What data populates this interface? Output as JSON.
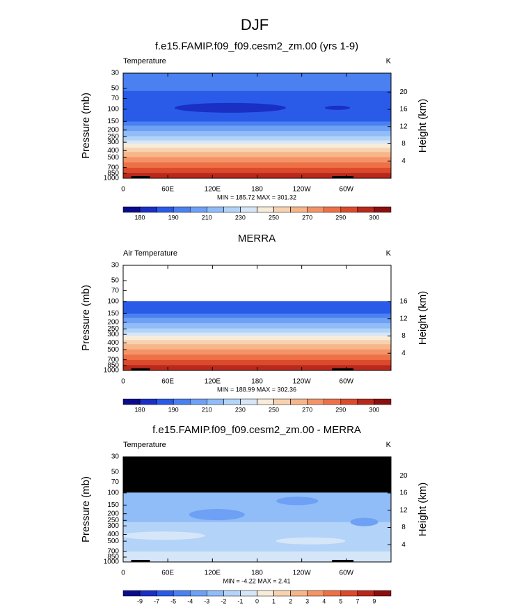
{
  "title": "DJF",
  "chart_data": [
    {
      "type": "contour",
      "title": "f.e15.FAMIP.f09_f09.cesm2_zm.00 (yrs 1-9)",
      "left_label": "Temperature",
      "units_label": "K",
      "ylabel": "Pressure (mb)",
      "y2label": "Height (km)",
      "xlim": [
        0,
        360
      ],
      "xticks": [
        0,
        {
          "value": 60,
          "label": "60E"
        },
        {
          "value": 120,
          "label": "120E"
        },
        180,
        {
          "value": 240,
          "label": "120W"
        },
        {
          "value": 300,
          "label": "60W"
        }
      ],
      "ylim": [
        1000,
        30
      ],
      "ylog": true,
      "yticks": [
        30,
        50,
        70,
        100,
        150,
        200,
        250,
        300,
        400,
        500,
        700,
        850,
        1000
      ],
      "y2lim": [
        0,
        24.4
      ],
      "y2ticks": [
        4,
        8,
        12,
        16,
        20
      ],
      "stats": "MIN = 185.72  MAX = 301.32",
      "colorbar": {
        "levels": [
          180,
          185,
          190,
          200,
          210,
          220,
          230,
          240,
          250,
          260,
          270,
          280,
          290,
          295,
          300
        ],
        "ticks": [
          180,
          190,
          210,
          230,
          250,
          270,
          290,
          300
        ],
        "colors": [
          "#0a0a8c",
          "#1a2fc4",
          "#2a5ae8",
          "#4a80f0",
          "#6ea0f5",
          "#90bcf7",
          "#b3d3f8",
          "#d6e6f9",
          "#f7ecd9",
          "#f8d2b0",
          "#f7b58a",
          "#f49466",
          "#ee7047",
          "#dc4a2c",
          "#b8281c",
          "#8a0f0f"
        ]
      }
    },
    {
      "type": "contour",
      "title": "MERRA",
      "left_label": "Air Temperature",
      "units_label": "K",
      "ylabel": "Pressure (mb)",
      "y2label": "Height (km)",
      "xlim": [
        0,
        360
      ],
      "xticks": [
        0,
        {
          "value": 60,
          "label": "60E"
        },
        {
          "value": 120,
          "label": "120E"
        },
        180,
        {
          "value": 240,
          "label": "120W"
        },
        {
          "value": 300,
          "label": "60W"
        }
      ],
      "ylim": [
        1000,
        30
      ],
      "ylog": true,
      "yticks": [
        30,
        50,
        70,
        100,
        150,
        200,
        250,
        300,
        400,
        500,
        700,
        850,
        1000
      ],
      "y2lim": [
        0,
        24.4
      ],
      "y2ticks": [
        4,
        8,
        12,
        16
      ],
      "stats": "MIN = 188.99  MAX = 302.36",
      "colorbar": {
        "levels": [
          180,
          185,
          190,
          200,
          210,
          220,
          230,
          240,
          250,
          260,
          270,
          280,
          290,
          295,
          300
        ],
        "ticks": [
          180,
          190,
          210,
          230,
          250,
          270,
          290,
          300
        ],
        "colors": [
          "#0a0a8c",
          "#1a2fc4",
          "#2a5ae8",
          "#4a80f0",
          "#6ea0f5",
          "#90bcf7",
          "#b3d3f8",
          "#d6e6f9",
          "#f7ecd9",
          "#f8d2b0",
          "#f7b58a",
          "#f49466",
          "#ee7047",
          "#dc4a2c",
          "#b8281c",
          "#8a0f0f"
        ]
      }
    },
    {
      "type": "contour",
      "title": "f.e15.FAMIP.f09_f09.cesm2_zm.00 - MERRA",
      "left_label": "Temperature",
      "units_label": "K",
      "ylabel": "Pressure (mb)",
      "y2label": "Height (km)",
      "xlim": [
        0,
        360
      ],
      "xticks": [
        0,
        {
          "value": 60,
          "label": "60E"
        },
        {
          "value": 120,
          "label": "120E"
        },
        180,
        {
          "value": 240,
          "label": "120W"
        },
        {
          "value": 300,
          "label": "60W"
        }
      ],
      "ylim": [
        1000,
        30
      ],
      "ylog": true,
      "yticks": [
        30,
        50,
        70,
        100,
        150,
        200,
        250,
        300,
        400,
        500,
        700,
        850,
        1000
      ],
      "y2lim": [
        0,
        24.4
      ],
      "y2ticks": [
        4,
        8,
        12,
        16,
        20
      ],
      "stats": "MIN = -4.22  MAX = 2.41",
      "colorbar": {
        "levels": [
          -9,
          -7,
          -5,
          -4,
          -3,
          -2,
          -1,
          0,
          1,
          2,
          3,
          4,
          5,
          7,
          9
        ],
        "ticks": [
          -9,
          -7,
          -5,
          -4,
          -3,
          -2,
          -1,
          0,
          1,
          2,
          3,
          4,
          5,
          7,
          9
        ],
        "colors": [
          "#0a0a8c",
          "#1a2fc4",
          "#2a5ae8",
          "#4a80f0",
          "#6ea0f5",
          "#90bcf7",
          "#b3d3f8",
          "#d6e6f9",
          "#f7ecd9",
          "#f8d2b0",
          "#f7b58a",
          "#f49466",
          "#ee7047",
          "#dc4a2c",
          "#b8281c",
          "#8a0f0f"
        ]
      }
    }
  ]
}
